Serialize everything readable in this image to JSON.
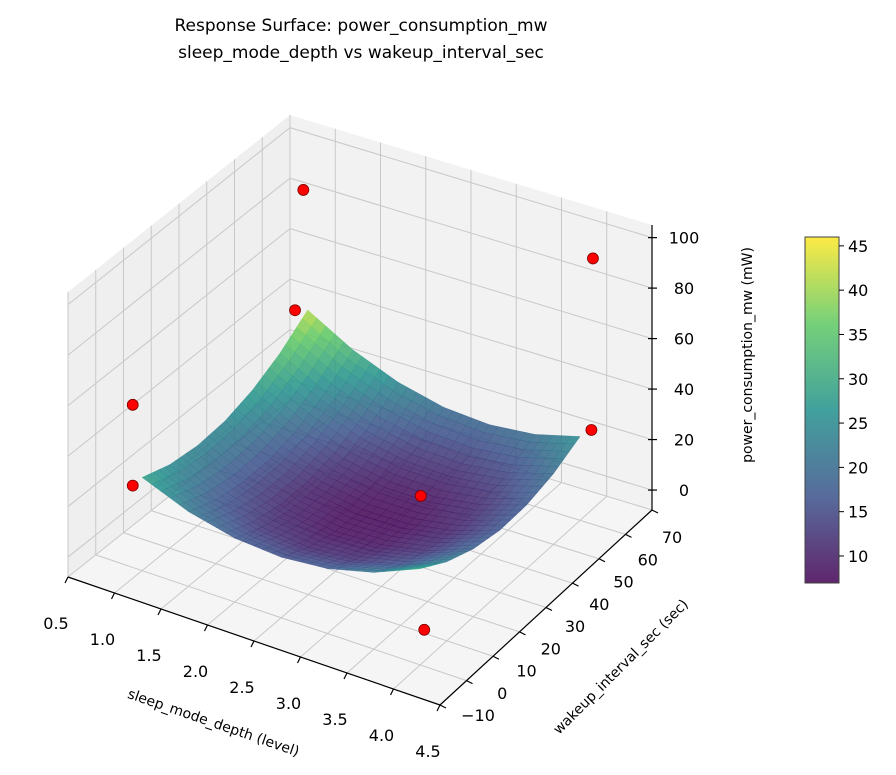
{
  "chart_data": {
    "type": "surface3d",
    "title": "Response Surface: power_consumption_mw",
    "subtitle": "sleep_mode_depth vs wakeup_interval_sec",
    "xlabel": "sleep_mode_depth (level)",
    "ylabel": "wakeup_interval_sec (sec)",
    "zlabel": "power_consumption_mw (mW)",
    "xlim": [
      0.5,
      4.5
    ],
    "ylim": [
      -10,
      70
    ],
    "zlim": [
      -7.9,
      105
    ],
    "xticks": [
      "0.5",
      "1.0",
      "1.5",
      "2.0",
      "2.5",
      "3.0",
      "3.5",
      "4.0",
      "4.5"
    ],
    "yticks": [
      "−10",
      "0",
      "10",
      "20",
      "30",
      "40",
      "50",
      "60",
      "70"
    ],
    "zticks": [
      "0",
      "20",
      "40",
      "60",
      "80",
      "100"
    ],
    "grid": true,
    "colormap": "viridis",
    "colorbar": {
      "range": [
        6.95,
        46.0
      ],
      "ticks": [
        "10",
        "15",
        "20",
        "25",
        "30",
        "35",
        "40",
        "45"
      ],
      "placement": "right"
    },
    "surface": {
      "x": [
        1.0,
        1.5,
        2.0,
        2.5,
        3.0,
        3.5,
        4.0
      ],
      "y": [
        0,
        10,
        20,
        30,
        40,
        50,
        60
      ],
      "z": [
        [
          29.0,
          25.2,
          23.8,
          24.7,
          28.1,
          33.9,
          42.1
        ],
        [
          21.7,
          17.4,
          15.5,
          15.9,
          18.8,
          24.1,
          31.8
        ],
        [
          17.4,
          12.6,
          10.2,
          10.1,
          12.5,
          17.3,
          24.5
        ],
        [
          16.1,
          10.8,
          7.9,
          7.3,
          9.2,
          13.5,
          20.2
        ],
        [
          17.8,
          12.0,
          8.6,
          7.5,
          8.9,
          12.7,
          18.9
        ],
        [
          22.5,
          16.2,
          12.3,
          10.7,
          11.6,
          14.9,
          20.6
        ],
        [
          30.2,
          23.4,
          19.0,
          16.9,
          17.3,
          20.1,
          25.3
        ]
      ]
    },
    "points": {
      "color": "#ff0000",
      "x": [
        0.8,
        0.8,
        0.6,
        0.6,
        2.9,
        4.3,
        4.2,
        3.9
      ],
      "y": [
        65,
        62,
        10,
        10,
        38,
        54,
        58,
        5
      ],
      "z": [
        83,
        38,
        44,
        12,
        10,
        37,
        100,
        0
      ]
    }
  }
}
